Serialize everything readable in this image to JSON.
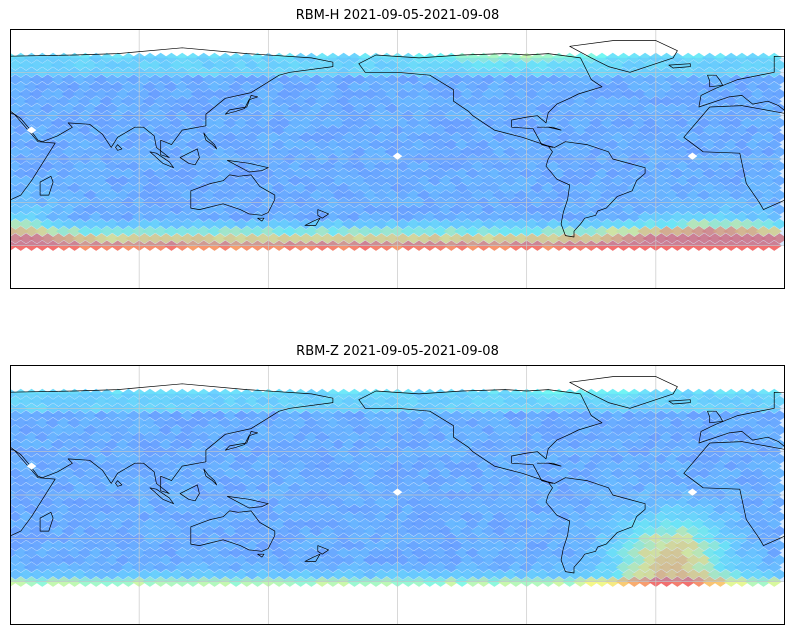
{
  "figure": {
    "maps": [
      {
        "title": "RBM-H 2021-09-05-2021-09-08",
        "field": "h"
      },
      {
        "title": "RBM-Z 2021-09-05-2021-09-08",
        "field": "z"
      }
    ]
  },
  "style": {
    "colormap": [
      "#6a5cff",
      "#5f8dff",
      "#5ccaff",
      "#63f7f2",
      "#f4f77a",
      "#f9b25f",
      "#f06060"
    ],
    "land_edge": "#000000",
    "grid": "#c8c8c8"
  }
}
